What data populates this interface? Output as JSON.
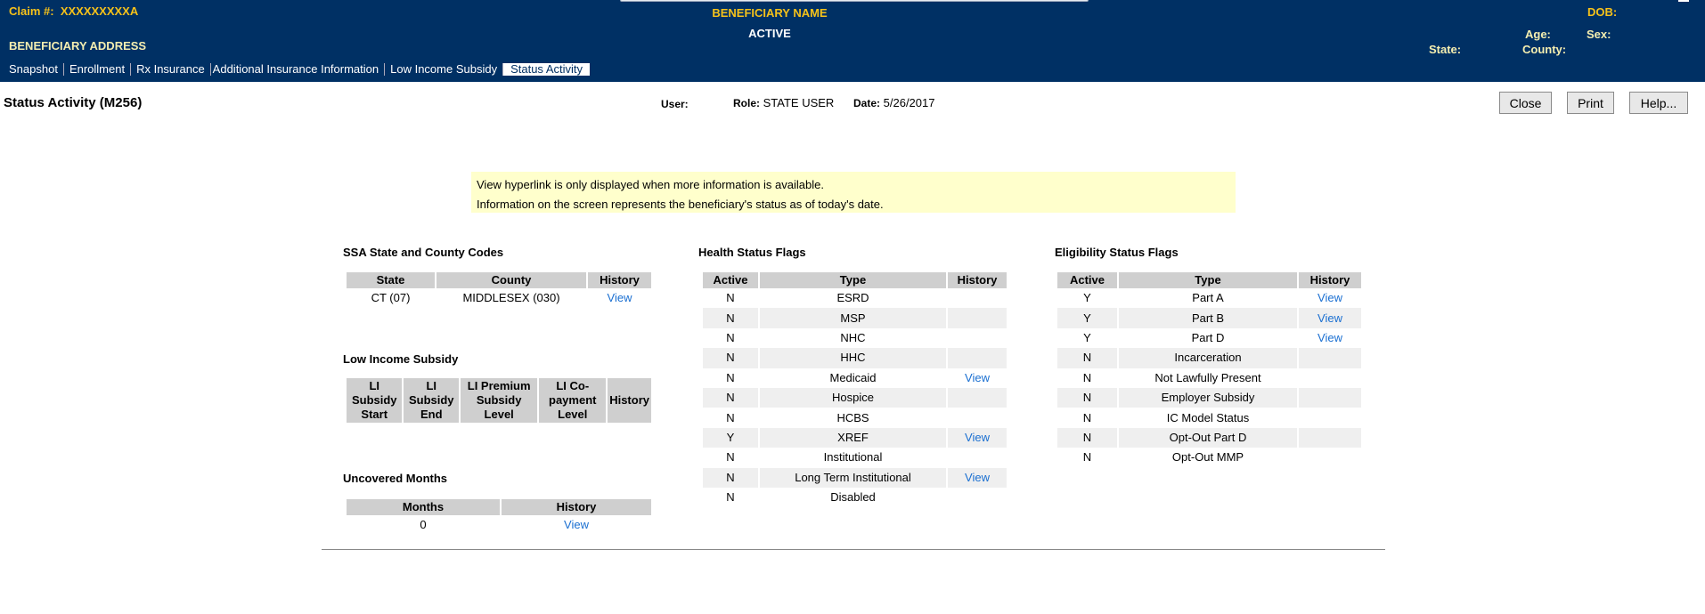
{
  "header": {
    "claim_label": "Claim #:",
    "claim_value": "XXXXXXXXXA",
    "beneficiary_name": "BENEFICIARY NAME",
    "status": "ACTIVE",
    "address": "BENEFICIARY ADDRESS",
    "dob_label": "DOB:",
    "age_label": "Age:",
    "sex_label": "Sex:",
    "state_label": "State:",
    "county_label": "County:"
  },
  "tabs": [
    {
      "label": "Snapshot"
    },
    {
      "label": "Enrollment"
    },
    {
      "label": "Rx Insurance"
    },
    {
      "label": "Additional Insurance Information"
    },
    {
      "label": "Low Income Subsidy"
    },
    {
      "label": "Status Activity",
      "active": true
    }
  ],
  "page": {
    "title": "Status Activity (M256)",
    "user_label": "User:",
    "role_label": "Role:",
    "role_value": "STATE USER",
    "date_label": "Date:",
    "date_value": "5/26/2017"
  },
  "buttons": {
    "close": "Close",
    "print": "Print",
    "help": "Help..."
  },
  "notice": [
    "View hyperlink is only displayed when more information is available.",
    "Information on the screen represents the beneficiary's status as of today's date."
  ],
  "ssa": {
    "title": "SSA State and County Codes",
    "columns": [
      "State",
      "County",
      "History"
    ],
    "rows": [
      {
        "state": "CT (07)",
        "county": "MIDDLESEX (030)",
        "history": "View"
      }
    ]
  },
  "lis": {
    "title": "Low Income Subsidy",
    "columns": [
      "LI Subsidy Start",
      "LI Subsidy End",
      "LI Premium Subsidy Level",
      "LI Co-payment Level",
      "History"
    ]
  },
  "uncovered": {
    "title": "Uncovered Months",
    "columns": [
      "Months",
      "History"
    ],
    "rows": [
      {
        "months": "0",
        "history": "View"
      }
    ]
  },
  "health": {
    "title": "Health Status Flags",
    "columns": [
      "Active",
      "Type",
      "History"
    ],
    "rows": [
      {
        "active": "N",
        "type": "ESRD",
        "history": ""
      },
      {
        "active": "N",
        "type": "MSP",
        "history": ""
      },
      {
        "active": "N",
        "type": "NHC",
        "history": ""
      },
      {
        "active": "N",
        "type": "HHC",
        "history": ""
      },
      {
        "active": "N",
        "type": "Medicaid",
        "history": "View"
      },
      {
        "active": "N",
        "type": "Hospice",
        "history": ""
      },
      {
        "active": "N",
        "type": "HCBS",
        "history": ""
      },
      {
        "active": "Y",
        "type": "XREF",
        "history": "View"
      },
      {
        "active": "N",
        "type": "Institutional",
        "history": ""
      },
      {
        "active": "N",
        "type": "Long Term Institutional",
        "history": "View"
      },
      {
        "active": "N",
        "type": "Disabled",
        "history": ""
      }
    ]
  },
  "eligibility": {
    "title": "Eligibility Status Flags",
    "columns": [
      "Active",
      "Type",
      "History"
    ],
    "rows": [
      {
        "active": "Y",
        "type": "Part A",
        "history": "View"
      },
      {
        "active": "Y",
        "type": "Part B",
        "history": "View"
      },
      {
        "active": "Y",
        "type": "Part D",
        "history": "View"
      },
      {
        "active": "N",
        "type": "Incarceration",
        "history": ""
      },
      {
        "active": "N",
        "type": "Not Lawfully Present",
        "history": ""
      },
      {
        "active": "N",
        "type": "Employer Subsidy",
        "history": ""
      },
      {
        "active": "N",
        "type": "IC Model Status",
        "history": ""
      },
      {
        "active": "N",
        "type": "Opt-Out Part D",
        "history": ""
      },
      {
        "active": "N",
        "type": "Opt-Out MMP",
        "history": ""
      }
    ]
  }
}
